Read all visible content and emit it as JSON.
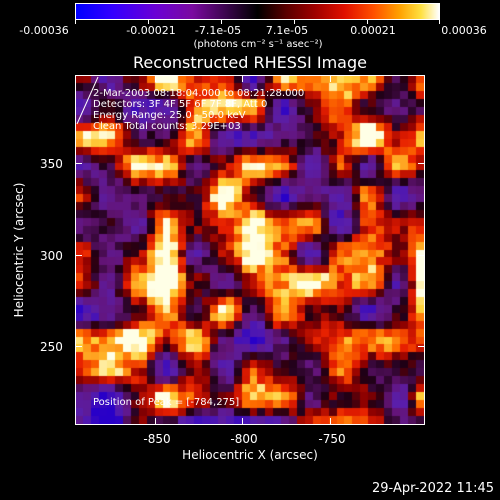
{
  "colorbar": {
    "labels": [
      "-0.00036",
      "-0.00021",
      "-7.1e-05",
      "7.1e-05",
      "0.00021",
      "0.00036"
    ],
    "units_text": "(photons cm",
    "units_full": "(photons cm⁻² s⁻¹ asec⁻²)"
  },
  "plot": {
    "title": "Reconstructed RHESSI Image",
    "info_lines": [
      "2-Mar-2003 08:18:04.000 to 08:21:28.000",
      "Detectors: 3F 4F 5F 6F 7F 8F, Att 0",
      "Energy Range: 25.0 - 50.0 keV",
      "Clean     Total counts: 3.29E+03"
    ],
    "peak_text": "Position of Peak = [-784,275]",
    "xlabel": "Heliocentric X (arcsec)",
    "ylabel": "Heliocentric Y (arcsec)",
    "xticks": [
      "-850",
      "-800",
      "-750"
    ],
    "yticks": [
      "350",
      "300",
      "250"
    ]
  },
  "timestamp": "29-Apr-2022 11:45",
  "colors": {
    "background": "#000000",
    "foreground": "#ffffff"
  }
}
